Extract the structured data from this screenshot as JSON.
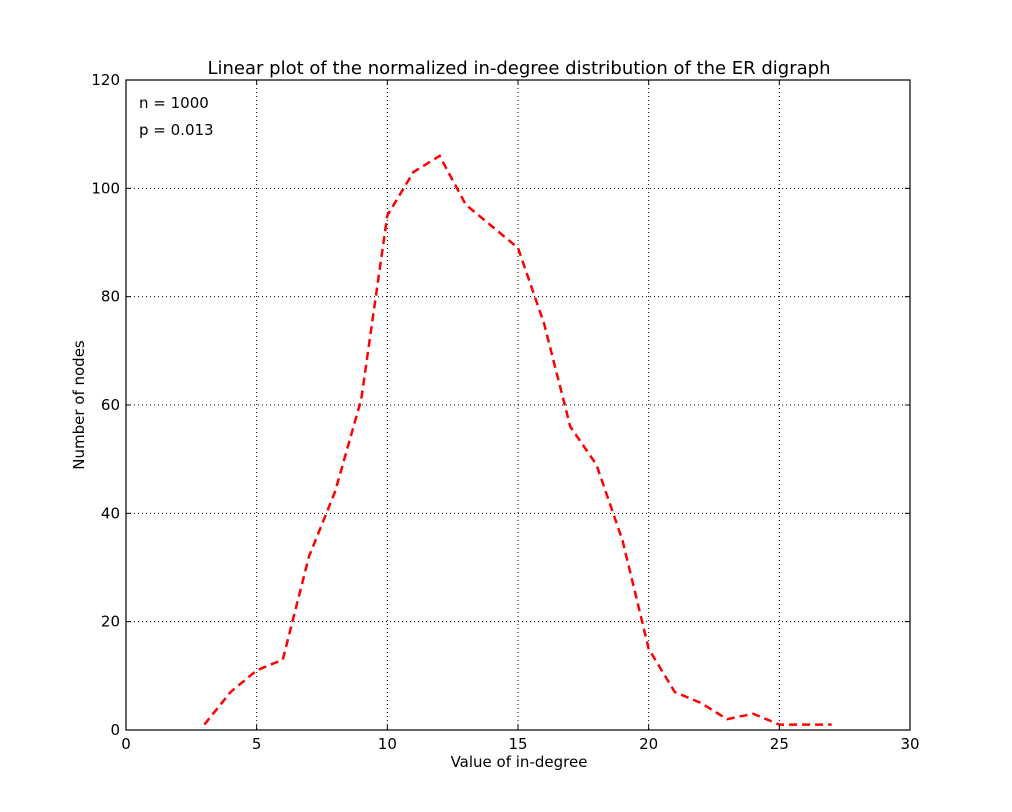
{
  "chart_data": {
    "type": "line",
    "title": "Linear plot of the normalized in-degree distribution of the ER digraph",
    "xlabel": "Value of in-degree",
    "ylabel": "Number of nodes",
    "xlim": [
      0,
      30
    ],
    "ylim": [
      0,
      120
    ],
    "xticks": [
      0,
      5,
      10,
      15,
      20,
      25,
      30
    ],
    "yticks": [
      0,
      20,
      40,
      60,
      80,
      100,
      120
    ],
    "grid": true,
    "annotations": [
      "n = 1000",
      "p = 0.013"
    ],
    "series": [
      {
        "color": "#ff0000",
        "style": "dashed",
        "x": [
          3,
          4,
          5,
          6,
          7,
          8,
          9,
          10,
          11,
          12,
          13,
          14,
          15,
          16,
          17,
          18,
          19,
          20,
          21,
          22,
          23,
          24,
          25,
          26,
          27
        ],
        "y": [
          1,
          7,
          11,
          13,
          32,
          44,
          61,
          95,
          103,
          106,
          97,
          93,
          89,
          75,
          56,
          49,
          35,
          15,
          7,
          5,
          2,
          3,
          1,
          1,
          1
        ]
      }
    ]
  }
}
